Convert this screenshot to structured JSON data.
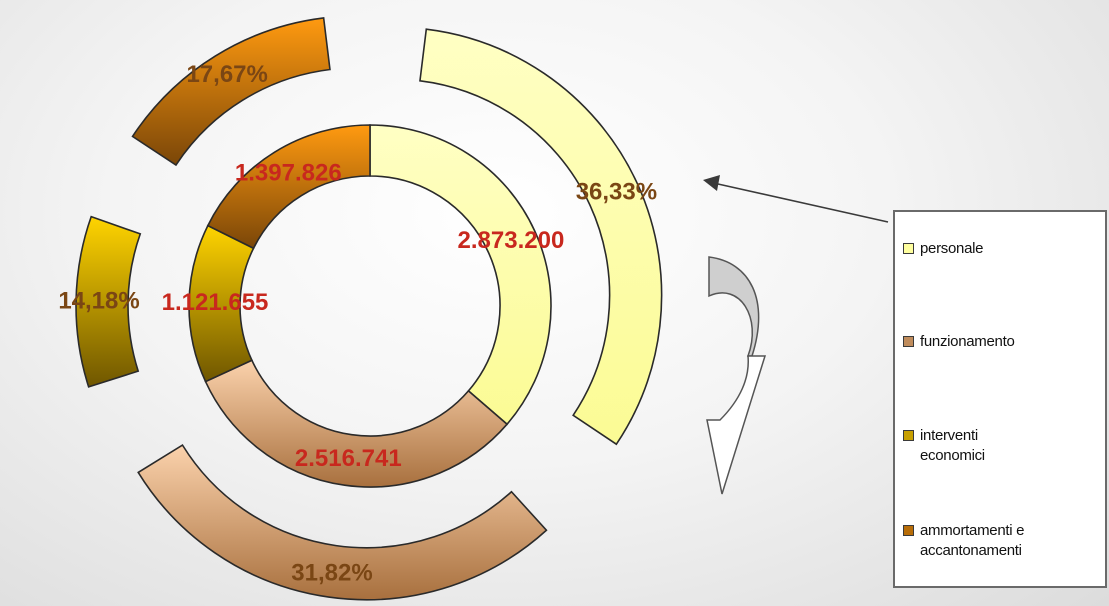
{
  "chart_data": {
    "type": "pie",
    "style": "double ring (doughnut) with exploded outer ring",
    "categories": [
      "personale",
      "funzionamento",
      "interventi economici",
      "ammortamenti e accantonamenti"
    ],
    "series": [
      {
        "values": [
          2873200,
          2516741,
          1121655,
          1397826
        ],
        "data_labels": [
          "2.873.200",
          "2.516.741",
          "1.121.655",
          "1.397.826"
        ]
      },
      {
        "values": [
          36.33,
          31.82,
          14.18,
          17.67
        ],
        "data_labels": [
          "36,33%",
          "31,82%",
          "14,18%",
          "17,67%"
        ]
      }
    ],
    "colors": [
      "#ffff9f",
      "#c08c5c",
      "#c8a000",
      "#b86d08"
    ],
    "legend": {
      "position": "right",
      "items": [
        "personale",
        "funzionamento",
        "interventi economici",
        "ammortamenti e accantonamenti"
      ]
    },
    "annotations": [
      "arrow pointing from legend to outer ring",
      "curved clockwise arrow"
    ]
  }
}
